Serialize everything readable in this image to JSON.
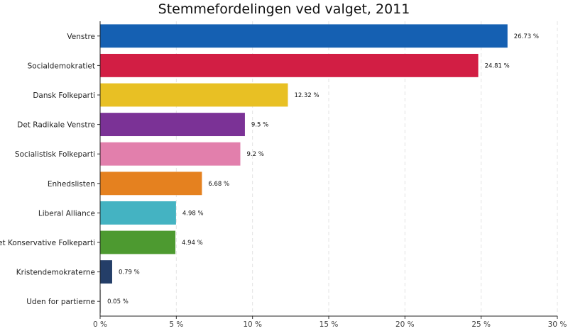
{
  "chart_data": {
    "type": "bar",
    "orientation": "horizontal",
    "title": "Stemmefordelingen ved valget, 2011",
    "xlabel": "",
    "ylabel": "",
    "xlim": [
      0,
      30
    ],
    "x_ticks": [
      "0 %",
      "5 %",
      "10 %",
      "15 %",
      "20 %",
      "25 %",
      "30 %"
    ],
    "grid": "vertical dashed",
    "categories": [
      "Venstre",
      "Socialdemokratiet",
      "Dansk Folkeparti",
      "Det Radikale Venstre",
      "Socialistisk Folkeparti",
      "Enhedslisten",
      "Liberal Alliance",
      "Det Konservative Folkeparti",
      "Kristendemokraterne",
      "Uden for partierne"
    ],
    "values": [
      26.73,
      24.81,
      12.32,
      9.5,
      9.2,
      6.68,
      4.98,
      4.94,
      0.79,
      0.05
    ],
    "value_labels": [
      "26.73 %",
      "24.81 %",
      "12.32 %",
      "9.5 %",
      "9.2 %",
      "6.68 %",
      "4.98 %",
      "4.94 %",
      "0.79 %",
      "0.05 %"
    ],
    "colors": [
      "#1560b2",
      "#d21e44",
      "#e8c024",
      "#7b3296",
      "#e27fac",
      "#e5811f",
      "#44b3c2",
      "#4d9a30",
      "#243e68",
      "#bdbdbd"
    ]
  }
}
